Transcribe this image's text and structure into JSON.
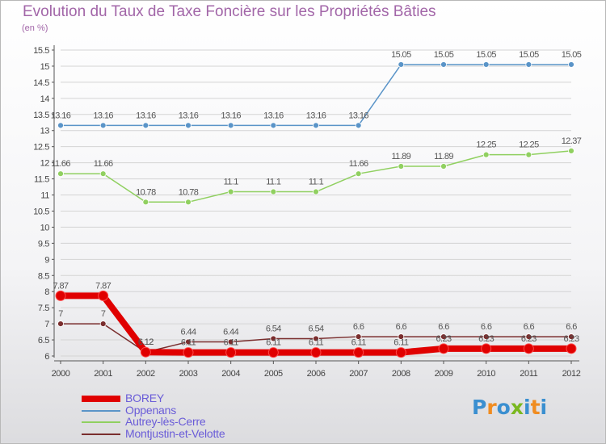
{
  "title": "Evolution du Taux de Taxe Foncière sur les Propriétés Bâties",
  "unit_label": "(en %)",
  "logo": {
    "letters": [
      "P",
      "r",
      "o",
      "x",
      "i",
      "t",
      "i"
    ],
    "colors": [
      "#3a8fd0",
      "#f08c20",
      "#3a8fd0",
      "#7ab820",
      "#3a8fd0",
      "#f08c20",
      "#3a8fd0"
    ]
  },
  "chart_data": {
    "type": "line",
    "title": "Evolution du Taux de Taxe Foncière sur les Propriétés Bâties",
    "ylabel": "(en %)",
    "xlabel": "",
    "ylim": [
      6,
      15.5
    ],
    "yticks": [
      "6",
      "6.5",
      "7",
      "7.5",
      "8",
      "8.5",
      "9",
      "9.5",
      "10",
      "10.5",
      "11",
      "11.5",
      "12",
      "12.5",
      "13",
      "13.5",
      "14",
      "14.5",
      "15",
      "15.5"
    ],
    "x": [
      "2000",
      "2001",
      "2002",
      "2003",
      "2004",
      "2005",
      "2006",
      "2007",
      "2008",
      "2009",
      "2010",
      "2011",
      "2012"
    ],
    "series": [
      {
        "name": "BOREY",
        "color": "#e00000",
        "values": [
          7.87,
          7.87,
          6.12,
          6.11,
          6.11,
          6.11,
          6.11,
          6.11,
          6.11,
          6.23,
          6.23,
          6.23,
          6.23
        ],
        "labels": [
          "7.87",
          "7.87",
          "6.12",
          "6.11",
          "6.11",
          "6.11",
          "6.11",
          "6.11",
          "6.11",
          "6.23",
          "6.23",
          "6.23",
          "6.23"
        ]
      },
      {
        "name": "Oppenans",
        "color": "#5a94c8",
        "values": [
          13.16,
          13.16,
          13.16,
          13.16,
          13.16,
          13.16,
          13.16,
          13.16,
          15.05,
          15.05,
          15.05,
          15.05,
          15.05
        ],
        "labels": [
          "13.16",
          "13.16",
          "13.16",
          "13.16",
          "13.16",
          "13.16",
          "13.16",
          "13.16",
          "15.05",
          "15.05",
          "15.05",
          "15.05",
          "15.05"
        ]
      },
      {
        "name": "Autrey-lès-Cerre",
        "color": "#90d060",
        "values": [
          11.66,
          11.66,
          10.78,
          10.78,
          11.1,
          11.1,
          11.1,
          11.66,
          11.89,
          11.89,
          12.25,
          12.25,
          12.37
        ],
        "labels": [
          "11.66",
          "11.66",
          "10.78",
          "10.78",
          "11.1",
          "11.1",
          "11.1",
          "11.66",
          "11.89",
          "11.89",
          "12.25",
          "12.25",
          "12.37"
        ]
      },
      {
        "name": "Montjustin-et-Velotte",
        "color": "#7a2e2e",
        "values": [
          7,
          7,
          6.12,
          6.44,
          6.44,
          6.54,
          6.54,
          6.6,
          6.6,
          6.6,
          6.6,
          6.6,
          6.6
        ],
        "labels": [
          "7",
          "7",
          "6.12",
          "6.44",
          "6.44",
          "6.54",
          "6.54",
          "6.6",
          "6.6",
          "6.6",
          "6.6",
          "6.6",
          "6.6"
        ]
      }
    ],
    "legend": [
      "BOREY",
      "Oppenans",
      "Autrey-lès-Cerre",
      "Montjustin-et-Velotte"
    ]
  }
}
